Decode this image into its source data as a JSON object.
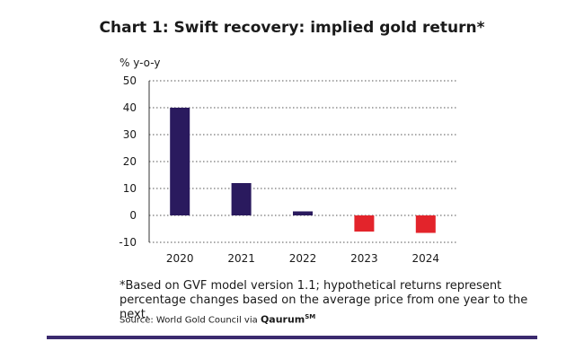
{
  "title": "Chart 1: Swift recovery: implied gold return*",
  "footnote": "*Based on GVF model version 1.1; hypothetical returns represent percentage changes based on the average price from one year to the next.",
  "source": {
    "prefix": "Source: World Gold Council via",
    "brand": "Qaurum",
    "brand_mark": "SM"
  },
  "colors": {
    "positive": "#2a1a5e",
    "negative": "#e3242b",
    "rule": "#3b2a6e",
    "grid": "#555555"
  },
  "chart_data": {
    "type": "bar",
    "title": "Chart 1: Swift recovery: implied gold return*",
    "xlabel": "",
    "ylabel": "% y-o-y",
    "categories": [
      "2020",
      "2021",
      "2022",
      "2023",
      "2024"
    ],
    "values": [
      40,
      12,
      1.5,
      -6,
      -6.5
    ],
    "ylim": [
      -10,
      50
    ],
    "yticks": [
      50,
      40,
      30,
      20,
      10,
      0,
      -10
    ],
    "ytick_labels": [
      "50",
      "40",
      "30",
      "20",
      "10",
      "0",
      "-10"
    ],
    "grid": "dotted horizontal",
    "legend": "none"
  }
}
